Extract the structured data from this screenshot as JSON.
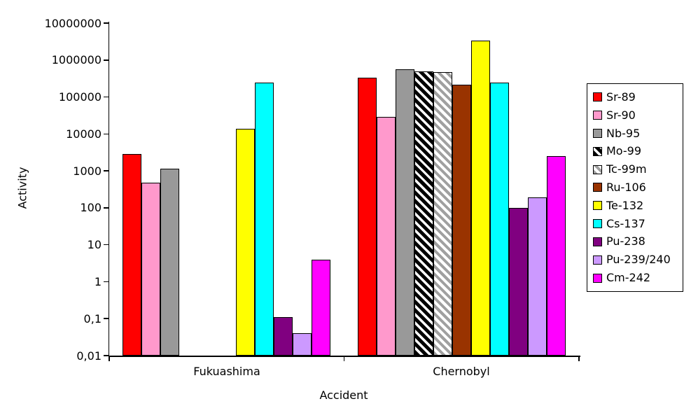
{
  "chart_data": {
    "type": "bar",
    "title": "",
    "xlabel": "Accident",
    "ylabel": "Activity",
    "scale": "log",
    "ylim": [
      0.01,
      10000000
    ],
    "grid": false,
    "legend_position": "right",
    "ytick_labels": [
      "10000000",
      "1000000",
      "100000",
      "10000",
      "1000",
      "100",
      "10",
      "1",
      "0,1",
      "0,01"
    ],
    "categories": [
      "Fukuashima",
      "Chernobyl"
    ],
    "series": [
      {
        "name": "Sr-89",
        "color": "#FF0000",
        "values": [
          2900,
          330000
        ]
      },
      {
        "name": "Sr-90",
        "color": "#FF99CC",
        "values": [
          480,
          29000
        ]
      },
      {
        "name": "Nb-95",
        "color": "#999999",
        "values": [
          1150,
          550000
        ]
      },
      {
        "name": "Mo-99",
        "pattern": "hatch-black",
        "values": [
          null,
          490000
        ]
      },
      {
        "name": "Tc-99m",
        "pattern": "hatch-gray",
        "values": [
          null,
          470000
        ]
      },
      {
        "name": "Ru-106",
        "color": "#993300",
        "values": [
          null,
          215000
        ]
      },
      {
        "name": "Te-132",
        "color": "#FFFF00",
        "values": [
          13500,
          3300000
        ]
      },
      {
        "name": "Cs-137",
        "color": "#00FFFF",
        "values": [
          240000,
          240000
        ]
      },
      {
        "name": "Pu-238",
        "color": "#800080",
        "values": [
          0.11,
          100
        ]
      },
      {
        "name": "Pu-239/240",
        "color": "#CC99FF",
        "values": [
          0.04,
          195
        ]
      },
      {
        "name": "Cm-242",
        "color": "#FF00FF",
        "values": [
          4,
          2500
        ]
      }
    ]
  }
}
